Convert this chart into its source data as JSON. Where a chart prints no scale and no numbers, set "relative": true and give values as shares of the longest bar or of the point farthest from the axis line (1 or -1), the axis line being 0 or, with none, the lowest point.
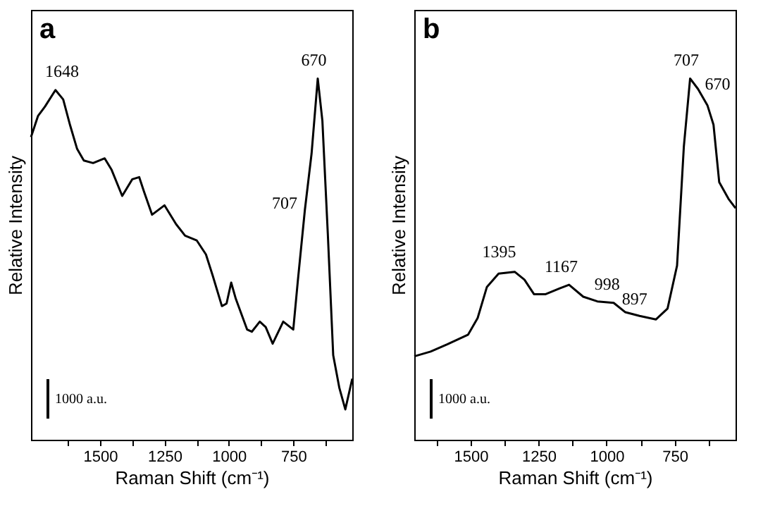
{
  "chart_data": [
    {
      "type": "line",
      "title": "a",
      "xlabel": "Raman Shift (cm⁻¹)",
      "ylabel": "Relative Intensity",
      "relative": true,
      "xlim": [
        1768,
        521
      ],
      "xticks": [
        {
          "value": 1625,
          "label": null
        },
        1500,
        {
          "value": 1375,
          "label": null
        },
        1250,
        {
          "value": 1125,
          "label": null
        },
        1000,
        {
          "value": 875,
          "label": null
        },
        750,
        {
          "value": 625,
          "label": null
        }
      ],
      "x": [
        1768,
        1741,
        1714,
        1673,
        1643,
        1616,
        1589,
        1563,
        1527,
        1482,
        1455,
        1414,
        1375,
        1348,
        1330,
        1298,
        1250,
        1205,
        1170,
        1125,
        1089,
        1063,
        1027,
        1009,
        991,
        973,
        929,
        911,
        880,
        857,
        830,
        789,
        750,
        732,
        705,
        679,
        655,
        637,
        616,
        595,
        571,
        548,
        521
      ],
      "series": [
        {
          "color": "#000000",
          "values": [
            0.838,
            0.896,
            0.922,
            0.968,
            0.942,
            0.87,
            0.805,
            0.773,
            0.766,
            0.779,
            0.747,
            0.675,
            0.721,
            0.727,
            0.688,
            0.623,
            0.649,
            0.597,
            0.565,
            0.552,
            0.513,
            0.455,
            0.37,
            0.377,
            0.435,
            0.39,
            0.305,
            0.299,
            0.327,
            0.312,
            0.266,
            0.327,
            0.305,
            0.442,
            0.636,
            0.792,
            1.0,
            0.883,
            0.571,
            0.234,
            0.143,
            0.084,
            0.169
          ]
        }
      ],
      "annotations": [
        {
          "text": "1648",
          "x": 1648,
          "y": 0.97
        },
        {
          "text": "707",
          "x": 707,
          "y": 0.64
        },
        {
          "text": "670",
          "x": 670,
          "y": 1.0
        },
        "1000 a.u."
      ]
    },
    {
      "type": "line",
      "title": "b",
      "xlabel": "Raman Shift (cm⁻¹)",
      "ylabel": "Relative Intensity",
      "relative": true,
      "xlim": [
        1707,
        526
      ],
      "xticks": [
        {
          "value": 1625,
          "label": null
        },
        1500,
        {
          "value": 1375,
          "label": null
        },
        1250,
        {
          "value": 1125,
          "label": null
        },
        1000,
        {
          "value": 875,
          "label": null
        },
        750,
        {
          "value": 625,
          "label": null
        }
      ],
      "x": [
        1707,
        1647,
        1586,
        1509,
        1474,
        1440,
        1397,
        1338,
        1302,
        1267,
        1224,
        1172,
        1138,
        1086,
        1034,
        974,
        931,
        879,
        819,
        776,
        741,
        716,
        693,
        664,
        629,
        607,
        586,
        552,
        526
      ],
      "series": [
        {
          "color": "#000000",
          "values": [
            0.231,
            0.244,
            0.264,
            0.291,
            0.337,
            0.423,
            0.46,
            0.465,
            0.443,
            0.403,
            0.403,
            0.419,
            0.429,
            0.396,
            0.383,
            0.379,
            0.353,
            0.343,
            0.333,
            0.363,
            0.482,
            0.812,
            1.0,
            0.971,
            0.925,
            0.872,
            0.713,
            0.667,
            0.641
          ]
        }
      ],
      "annotations": [
        {
          "text": "1395",
          "x": 1395,
          "y": 0.47
        },
        {
          "text": "1167",
          "x": 1167,
          "y": 0.43
        },
        {
          "text": "998",
          "x": 998,
          "y": 0.38
        },
        {
          "text": "897",
          "x": 897,
          "y": 0.34
        },
        {
          "text": "707",
          "x": 707,
          "y": 1.0
        },
        {
          "text": "670",
          "x": 670,
          "y": 0.97
        },
        "1000 a.u."
      ]
    }
  ]
}
